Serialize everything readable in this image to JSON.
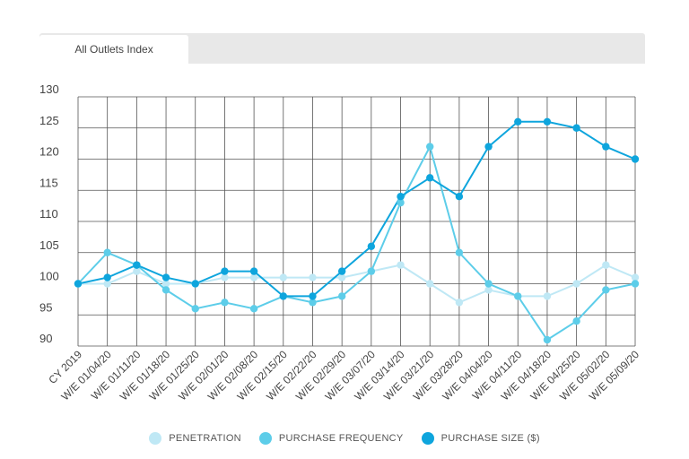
{
  "tabs": [
    {
      "label": "All Outlets Index"
    }
  ],
  "chart_data": {
    "type": "line",
    "title": "",
    "xlabel": "",
    "ylabel": "",
    "ylim": [
      90,
      130
    ],
    "yticks": [
      90,
      95,
      100,
      105,
      110,
      115,
      120,
      125,
      130
    ],
    "grid": true,
    "legend_position": "bottom",
    "categories": [
      "CY 2019",
      "W/E 01/04/20",
      "W/E 01/11/20",
      "W/E 01/18/20",
      "W/E 01/25/20",
      "W/E 02/01/20",
      "W/E 02/08/20",
      "W/E 02/15/20",
      "W/E 02/22/20",
      "W/E 02/29/20",
      "W/E 03/07/20",
      "W/E 03/14/20",
      "W/E 03/21/20",
      "W/E 03/28/20",
      "W/E 04/04/20",
      "W/E 04/11/20",
      "W/E 04/18/20",
      "W/E 04/25/20",
      "W/E 05/02/20",
      "W/E 05/09/20"
    ],
    "series": [
      {
        "name": "PENETRATION",
        "color": "#bfe8f5",
        "values": [
          100,
          100,
          102,
          100,
          100,
          101,
          101,
          101,
          101,
          101,
          102,
          103,
          100,
          97,
          99,
          98,
          98,
          100,
          103,
          101
        ]
      },
      {
        "name": "PURCHASE FREQUENCY",
        "color": "#5dcde9",
        "values": [
          100,
          105,
          103,
          99,
          96,
          97,
          96,
          98,
          97,
          98,
          102,
          113,
          122,
          105,
          100,
          98,
          91,
          94,
          99,
          100
        ]
      },
      {
        "name": "PURCHASE SIZE ($)",
        "color": "#0ea5dd",
        "values": [
          100,
          101,
          103,
          101,
          100,
          102,
          102,
          98,
          98,
          102,
          106,
          114,
          117,
          114,
          122,
          126,
          126,
          125,
          122,
          120
        ]
      }
    ]
  }
}
